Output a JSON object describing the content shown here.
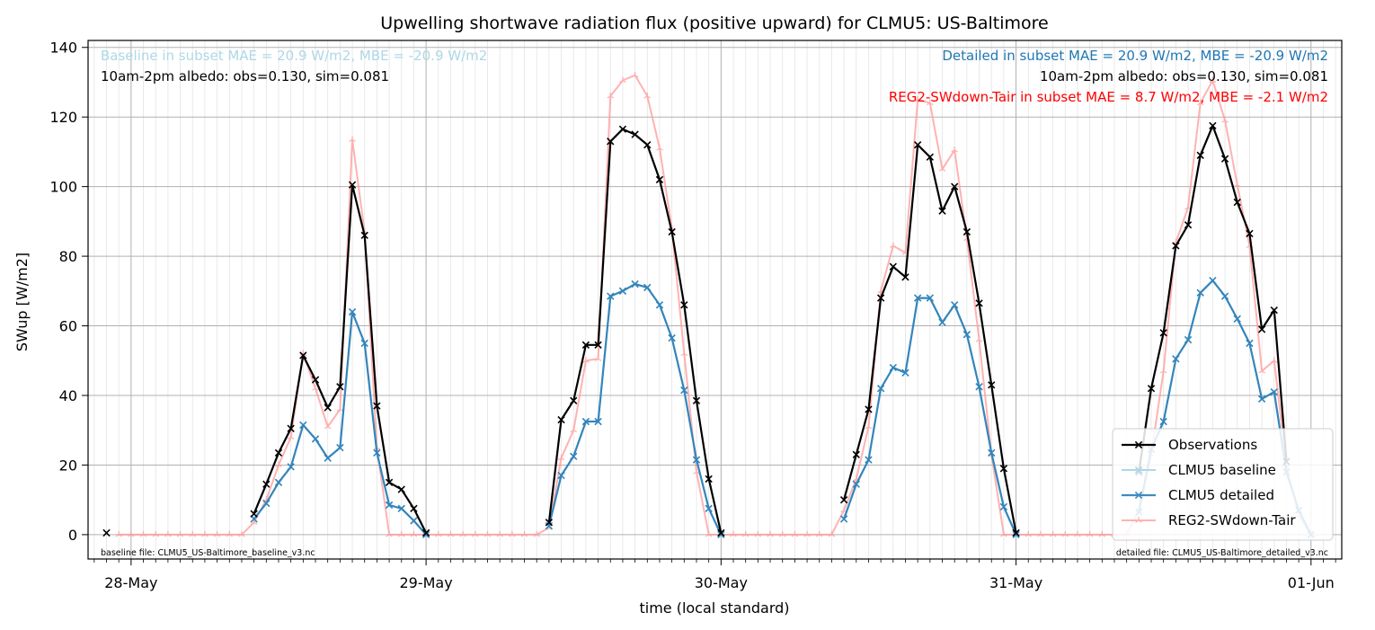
{
  "colors": {
    "observations": "#000000",
    "baseline": "#add8e6",
    "detailed": "#1f77b4",
    "reg2": "#ff9999",
    "reg2_text": "#ff0000",
    "grid": "#b0b0b0",
    "minor_grid": "#e4e4e4"
  },
  "chart_data": {
    "type": "line",
    "title": "Upwelling shortwave radiation flux (positive upward) for CLMU5: US-Baltimore",
    "xlabel": "time (local standard)",
    "ylabel": "SWup [W/m2]",
    "x_unit": "hours since 28-May 00:00 (hourly, local standard)",
    "xlim": [
      -3.5,
      98.5
    ],
    "ylim": [
      -7,
      142
    ],
    "grid": true,
    "x_ticks": [
      {
        "x": 0,
        "label": "28-May"
      },
      {
        "x": 24,
        "label": "29-May"
      },
      {
        "x": 48,
        "label": "30-May"
      },
      {
        "x": 72,
        "label": "31-May"
      },
      {
        "x": 96,
        "label": "01-Jun"
      }
    ],
    "y_ticks": [
      0,
      20,
      40,
      60,
      80,
      100,
      120,
      140
    ],
    "legend_position": "lower-right",
    "annotations": {
      "baseline_stats": "Baseline in subset MAE = 20.9 W/m2, MBE = -20.9 W/m2",
      "left_albedo": "10am-2pm albedo: obs=0.130, sim=0.081",
      "detailed_stats": "Detailed in subset MAE = 20.9 W/m2, MBE = -20.9 W/m2",
      "right_albedo": "10am-2pm albedo: obs=0.130, sim=0.081",
      "reg2_stats": "REG2-SWdown-Tair in subset MAE = 8.7 W/m2, MBE = -2.1 W/m2",
      "baseline_file": "baseline file: CLMU5_US-Baltimore_baseline_v3.nc",
      "detailed_file": "detailed file: CLMU5_US-Baltimore_detailed_v3.nc"
    },
    "series": [
      {
        "name": "Observations",
        "marker": "x",
        "points": [
          [
            -2,
            0.5
          ],
          [
            10,
            6
          ],
          [
            11,
            14.5
          ],
          [
            12,
            23.5
          ],
          [
            13,
            30.5
          ],
          [
            14,
            51.5
          ],
          [
            15,
            44.5
          ],
          [
            16,
            36.5
          ],
          [
            17,
            42.5
          ],
          [
            18,
            100.5
          ],
          [
            19,
            86
          ],
          [
            20,
            37
          ],
          [
            21,
            15
          ],
          [
            22,
            13
          ],
          [
            23,
            7.5
          ],
          [
            24,
            0.5
          ],
          [
            34,
            3.5
          ],
          [
            35,
            33
          ],
          [
            36,
            38.5
          ],
          [
            37,
            54.5
          ],
          [
            38,
            54.5
          ],
          [
            39,
            113
          ],
          [
            40,
            116.5
          ],
          [
            41,
            115
          ],
          [
            42,
            112
          ],
          [
            43,
            102
          ],
          [
            44,
            87
          ],
          [
            45,
            66
          ],
          [
            46,
            38.5
          ],
          [
            47,
            16
          ],
          [
            48,
            0.5
          ],
          [
            58,
            10
          ],
          [
            59,
            23
          ],
          [
            60,
            36
          ],
          [
            61,
            68
          ],
          [
            62,
            77
          ],
          [
            63,
            74
          ],
          [
            64,
            112
          ],
          [
            65,
            108.5
          ],
          [
            66,
            93
          ],
          [
            67,
            100
          ],
          [
            68,
            87
          ],
          [
            69,
            66.5
          ],
          [
            70,
            43
          ],
          [
            71,
            19
          ],
          [
            72,
            0.5
          ],
          [
            82,
            18
          ],
          [
            83,
            42
          ],
          [
            84,
            58
          ],
          [
            85,
            83
          ],
          [
            86,
            89
          ],
          [
            87,
            109
          ],
          [
            88,
            117.5
          ],
          [
            89,
            108
          ],
          [
            90,
            95.5
          ],
          [
            91,
            86.5
          ],
          [
            92,
            59
          ],
          [
            93,
            64.5
          ],
          [
            94,
            21
          ]
        ]
      },
      {
        "name": "CLMU5 baseline",
        "marker": "x",
        "points": [
          [
            10,
            4.5
          ],
          [
            11,
            9
          ],
          [
            12,
            15
          ],
          [
            13,
            19.5
          ],
          [
            14,
            31.5
          ],
          [
            15,
            27.5
          ],
          [
            16,
            22
          ],
          [
            17,
            25
          ],
          [
            18,
            64
          ],
          [
            19,
            55
          ],
          [
            20,
            23.5
          ],
          [
            21,
            8.5
          ],
          [
            22,
            7.5
          ],
          [
            23,
            4
          ],
          [
            24,
            0
          ],
          [
            34,
            2.5
          ],
          [
            35,
            17
          ],
          [
            36,
            22.5
          ],
          [
            37,
            32.5
          ],
          [
            38,
            32.5
          ],
          [
            39,
            68.5
          ],
          [
            40,
            70
          ],
          [
            41,
            72
          ],
          [
            42,
            71
          ],
          [
            43,
            66
          ],
          [
            44,
            56.5
          ],
          [
            45,
            41.5
          ],
          [
            46,
            21.5
          ],
          [
            47,
            7.5
          ],
          [
            48,
            0
          ],
          [
            58,
            4.5
          ],
          [
            59,
            14.5
          ],
          [
            60,
            21.5
          ],
          [
            61,
            42
          ],
          [
            62,
            48
          ],
          [
            63,
            46.5
          ],
          [
            64,
            68
          ],
          [
            65,
            68
          ],
          [
            66,
            61
          ],
          [
            67,
            66
          ],
          [
            68,
            57.5
          ],
          [
            69,
            42.5
          ],
          [
            70,
            23.5
          ],
          [
            71,
            8
          ],
          [
            72,
            0
          ],
          [
            82,
            6.5
          ],
          [
            83,
            24.5
          ],
          [
            84,
            32.5
          ],
          [
            85,
            50.5
          ],
          [
            86,
            56
          ],
          [
            87,
            69.5
          ],
          [
            88,
            73
          ],
          [
            89,
            68.5
          ],
          [
            90,
            62
          ],
          [
            91,
            55
          ],
          [
            92,
            39
          ],
          [
            93,
            41
          ],
          [
            94,
            18
          ],
          [
            95,
            7
          ],
          [
            96,
            0
          ]
        ]
      },
      {
        "name": "CLMU5 detailed",
        "marker": "x",
        "points": [
          [
            10,
            4.5
          ],
          [
            11,
            9
          ],
          [
            12,
            15
          ],
          [
            13,
            19.5
          ],
          [
            14,
            31.5
          ],
          [
            15,
            27.5
          ],
          [
            16,
            22
          ],
          [
            17,
            25
          ],
          [
            18,
            64
          ],
          [
            19,
            55
          ],
          [
            20,
            23.5
          ],
          [
            21,
            8.5
          ],
          [
            22,
            7.5
          ],
          [
            23,
            4
          ],
          [
            24,
            0
          ],
          [
            34,
            2.5
          ],
          [
            35,
            17
          ],
          [
            36,
            22.5
          ],
          [
            37,
            32.5
          ],
          [
            38,
            32.5
          ],
          [
            39,
            68.5
          ],
          [
            40,
            70
          ],
          [
            41,
            72
          ],
          [
            42,
            71
          ],
          [
            43,
            66
          ],
          [
            44,
            56.5
          ],
          [
            45,
            41.5
          ],
          [
            46,
            21.5
          ],
          [
            47,
            7.5
          ],
          [
            48,
            0
          ],
          [
            58,
            4.5
          ],
          [
            59,
            14.5
          ],
          [
            60,
            21.5
          ],
          [
            61,
            42
          ],
          [
            62,
            48
          ],
          [
            63,
            46.5
          ],
          [
            64,
            68
          ],
          [
            65,
            68
          ],
          [
            66,
            61
          ],
          [
            67,
            66
          ],
          [
            68,
            57.5
          ],
          [
            69,
            42.5
          ],
          [
            70,
            23.5
          ],
          [
            71,
            8
          ],
          [
            72,
            0
          ],
          [
            82,
            6.5
          ],
          [
            83,
            24.5
          ],
          [
            84,
            32.5
          ],
          [
            85,
            50.5
          ],
          [
            86,
            56
          ],
          [
            87,
            69.5
          ],
          [
            88,
            73
          ],
          [
            89,
            68.5
          ],
          [
            90,
            62
          ],
          [
            91,
            55
          ],
          [
            92,
            39
          ],
          [
            93,
            41
          ],
          [
            94,
            18
          ],
          [
            95,
            7
          ],
          [
            96,
            0
          ]
        ]
      },
      {
        "name": "REG2-SWdown-Tair",
        "marker": "tri",
        "points": [
          [
            -1,
            0
          ],
          [
            0,
            0
          ],
          [
            1,
            0
          ],
          [
            2,
            0
          ],
          [
            3,
            0
          ],
          [
            4,
            0
          ],
          [
            5,
            0
          ],
          [
            6,
            0
          ],
          [
            7,
            0
          ],
          [
            8,
            0
          ],
          [
            9,
            0
          ],
          [
            10,
            3.5
          ],
          [
            11,
            10
          ],
          [
            12,
            20
          ],
          [
            13,
            28
          ],
          [
            14,
            52
          ],
          [
            15,
            42
          ],
          [
            16,
            31
          ],
          [
            17,
            36
          ],
          [
            18,
            113.5
          ],
          [
            19,
            87
          ],
          [
            20,
            25
          ],
          [
            21,
            0
          ],
          [
            22,
            0
          ],
          [
            23,
            0
          ],
          [
            24,
            0
          ],
          [
            25,
            0
          ],
          [
            26,
            0
          ],
          [
            27,
            0
          ],
          [
            28,
            0
          ],
          [
            29,
            0
          ],
          [
            30,
            0
          ],
          [
            31,
            0
          ],
          [
            32,
            0
          ],
          [
            33,
            0
          ],
          [
            34,
            2
          ],
          [
            35,
            22
          ],
          [
            36,
            30
          ],
          [
            37,
            50
          ],
          [
            38,
            50.5
          ],
          [
            39,
            126
          ],
          [
            40,
            130.5
          ],
          [
            41,
            132
          ],
          [
            42,
            126
          ],
          [
            43,
            111
          ],
          [
            44,
            88
          ],
          [
            45,
            52
          ],
          [
            46,
            18
          ],
          [
            47,
            0
          ],
          [
            48,
            0
          ],
          [
            49,
            0
          ],
          [
            50,
            0
          ],
          [
            51,
            0
          ],
          [
            52,
            0
          ],
          [
            53,
            0
          ],
          [
            54,
            0
          ],
          [
            55,
            0
          ],
          [
            56,
            0
          ],
          [
            57,
            0
          ],
          [
            58,
            7
          ],
          [
            59,
            16
          ],
          [
            60,
            31
          ],
          [
            61,
            70
          ],
          [
            62,
            83
          ],
          [
            63,
            81
          ],
          [
            64,
            125
          ],
          [
            65,
            124
          ],
          [
            66,
            105
          ],
          [
            67,
            110.5
          ],
          [
            68,
            85
          ],
          [
            69,
            56
          ],
          [
            70,
            23
          ],
          [
            71,
            0
          ],
          [
            72,
            0
          ],
          [
            73,
            0
          ],
          [
            74,
            0
          ],
          [
            75,
            0
          ],
          [
            76,
            0
          ],
          [
            77,
            0
          ],
          [
            78,
            0
          ],
          [
            79,
            0
          ],
          [
            80,
            0
          ],
          [
            81,
            0
          ],
          [
            82,
            7
          ],
          [
            83,
            23
          ],
          [
            84,
            47
          ],
          [
            85,
            84
          ],
          [
            86,
            94
          ],
          [
            87,
            124
          ],
          [
            88,
            130.5
          ],
          [
            89,
            119
          ],
          [
            90,
            100.5
          ],
          [
            91,
            83
          ],
          [
            92,
            47
          ],
          [
            93,
            50
          ],
          [
            94,
            20
          ],
          [
            95,
            5.5
          ],
          [
            96,
            0
          ]
        ]
      }
    ]
  }
}
